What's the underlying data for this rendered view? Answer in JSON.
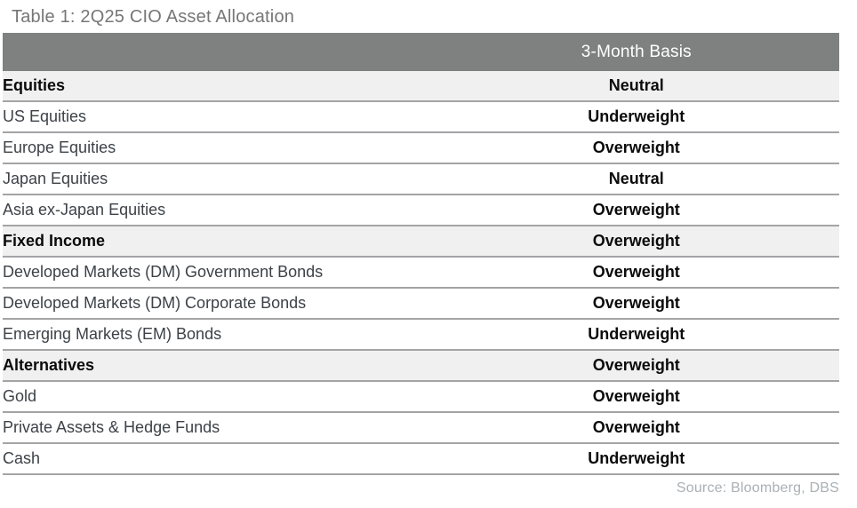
{
  "title": "Table 1: 2Q25 CIO Asset Allocation",
  "header": {
    "asset_col_label": "",
    "basis_label": "3-Month Basis"
  },
  "rows": [
    {
      "label": "Equities",
      "value": "Neutral",
      "is_section": true
    },
    {
      "label": "US Equities",
      "value": "Underweight",
      "is_section": false
    },
    {
      "label": "Europe Equities",
      "value": "Overweight",
      "is_section": false
    },
    {
      "label": "Japan Equities",
      "value": "Neutral",
      "is_section": false
    },
    {
      "label": "Asia ex-Japan Equities",
      "value": "Overweight",
      "is_section": false
    },
    {
      "label": "Fixed Income",
      "value": "Overweight",
      "is_section": true
    },
    {
      "label": "Developed Markets (DM) Government Bonds",
      "value": "Overweight",
      "is_section": false
    },
    {
      "label": "Developed Markets (DM) Corporate Bonds",
      "value": "Overweight",
      "is_section": false
    },
    {
      "label": "Emerging Markets (EM) Bonds",
      "value": "Underweight",
      "is_section": false
    },
    {
      "label": "Alternatives",
      "value": "Overweight",
      "is_section": true
    },
    {
      "label": "Gold",
      "value": "Overweight",
      "is_section": false
    },
    {
      "label": "Private Assets & Hedge Funds",
      "value": "Overweight",
      "is_section": false
    },
    {
      "label": "Cash",
      "value": "Underweight",
      "is_section": false
    }
  ],
  "footer": "Source: Bloomberg, DBS",
  "colors": {
    "header-bg": "#7f8080",
    "header-text": "#ffffff",
    "section-bg": "#f0f0f0",
    "divider": "#a3a4a6",
    "title-text": "#767676",
    "label-text": "#3d4248",
    "value-text": "#0b0b0b",
    "footer-text": "#aab0b5"
  }
}
